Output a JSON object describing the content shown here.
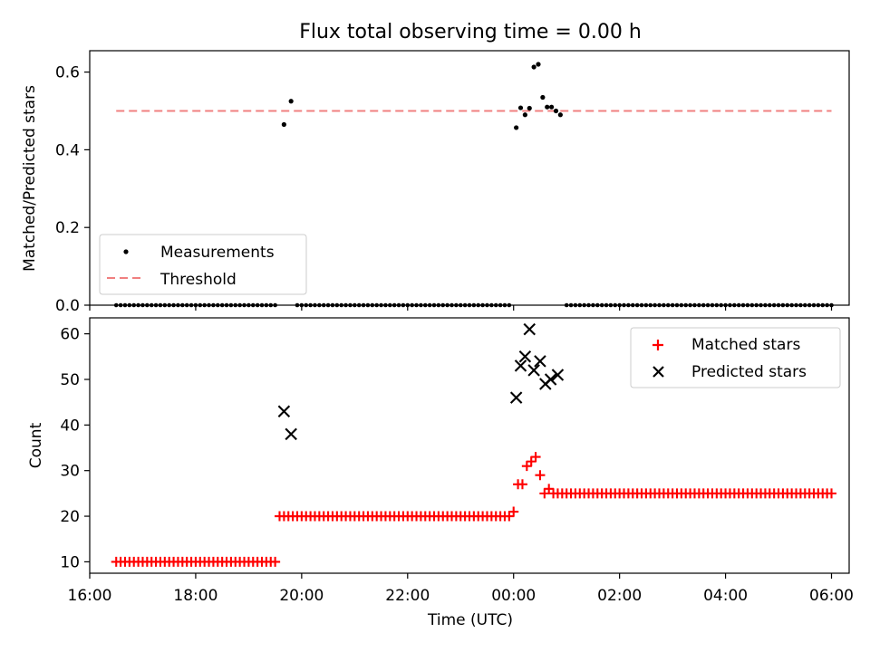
{
  "colors": {
    "measurement": "#000000",
    "threshold": "#f08080",
    "matched": "#ff0000",
    "predicted": "#000000"
  },
  "chart_data": [
    {
      "type": "scatter",
      "title": "Flux total observing time = 0.00 h",
      "ylabel": "Matched/Predicted stars",
      "xlabel": "",
      "ylim": [
        0,
        0.655
      ],
      "xlim": [
        "16:00",
        "06:20"
      ],
      "yticks": [
        "0.0",
        "0.2",
        "0.4",
        "0.6"
      ],
      "legend": {
        "placement": "lower-left",
        "entries": [
          "Measurements",
          "Threshold"
        ]
      },
      "threshold": {
        "name": "Threshold",
        "value": 0.5,
        "x_range": [
          "16:30",
          "06:00"
        ]
      },
      "series": [
        {
          "name": "Measurements",
          "zeros": {
            "x_start": "16:30",
            "x_end": "06:00",
            "step_minutes": 5,
            "exclude_ranges": [
              [
                "19:35",
                "19:50"
              ],
              [
                "00:00",
                "00:55"
              ]
            ]
          },
          "points": [
            {
              "x": "19:40",
              "y": 0.465
            },
            {
              "x": "19:48",
              "y": 0.525
            },
            {
              "x": "00:03",
              "y": 0.457
            },
            {
              "x": "00:08",
              "y": 0.508
            },
            {
              "x": "00:13",
              "y": 0.49
            },
            {
              "x": "00:18",
              "y": 0.507
            },
            {
              "x": "00:23",
              "y": 0.613
            },
            {
              "x": "00:28",
              "y": 0.62
            },
            {
              "x": "00:33",
              "y": 0.535
            },
            {
              "x": "00:38",
              "y": 0.51
            },
            {
              "x": "00:43",
              "y": 0.51
            },
            {
              "x": "00:48",
              "y": 0.5
            },
            {
              "x": "00:53",
              "y": 0.49
            }
          ]
        }
      ]
    },
    {
      "type": "scatter",
      "title": "",
      "ylabel": "Count",
      "xlabel": "Time (UTC)",
      "ylim": [
        7.5,
        63.5
      ],
      "xlim": [
        "16:00",
        "06:20"
      ],
      "yticks": [
        "10",
        "20",
        "30",
        "40",
        "50",
        "60"
      ],
      "xticks": [
        "16:00",
        "18:00",
        "20:00",
        "22:00",
        "00:00",
        "02:00",
        "04:00",
        "06:00"
      ],
      "legend": {
        "placement": "upper-right",
        "entries": [
          "Matched stars",
          "Predicted stars"
        ]
      },
      "series": [
        {
          "name": "Matched stars",
          "runs": [
            {
              "x_start": "16:30",
              "x_end": "19:30",
              "step_minutes": 5,
              "y": 10
            },
            {
              "x_start": "19:40",
              "x_end": "23:55",
              "step_minutes": 5,
              "y": 20
            },
            {
              "x_start": "00:55",
              "x_end": "06:00",
              "step_minutes": 5,
              "y": 25
            }
          ],
          "points": [
            {
              "x": "19:35",
              "y": 20
            },
            {
              "x": "00:00",
              "y": 21
            },
            {
              "x": "00:05",
              "y": 27
            },
            {
              "x": "00:10",
              "y": 27
            },
            {
              "x": "00:15",
              "y": 31
            },
            {
              "x": "00:20",
              "y": 32
            },
            {
              "x": "00:25",
              "y": 33
            },
            {
              "x": "00:30",
              "y": 29
            },
            {
              "x": "00:35",
              "y": 25
            },
            {
              "x": "00:40",
              "y": 26
            },
            {
              "x": "00:45",
              "y": 25
            },
            {
              "x": "00:50",
              "y": 25
            }
          ]
        },
        {
          "name": "Predicted stars",
          "points": [
            {
              "x": "19:40",
              "y": 43
            },
            {
              "x": "19:48",
              "y": 38
            },
            {
              "x": "00:03",
              "y": 46
            },
            {
              "x": "00:08",
              "y": 53
            },
            {
              "x": "00:13",
              "y": 55
            },
            {
              "x": "00:18",
              "y": 61
            },
            {
              "x": "00:23",
              "y": 52
            },
            {
              "x": "00:30",
              "y": 54
            },
            {
              "x": "00:36",
              "y": 49
            },
            {
              "x": "00:42",
              "y": 50
            },
            {
              "x": "00:50",
              "y": 51
            }
          ]
        }
      ]
    }
  ]
}
